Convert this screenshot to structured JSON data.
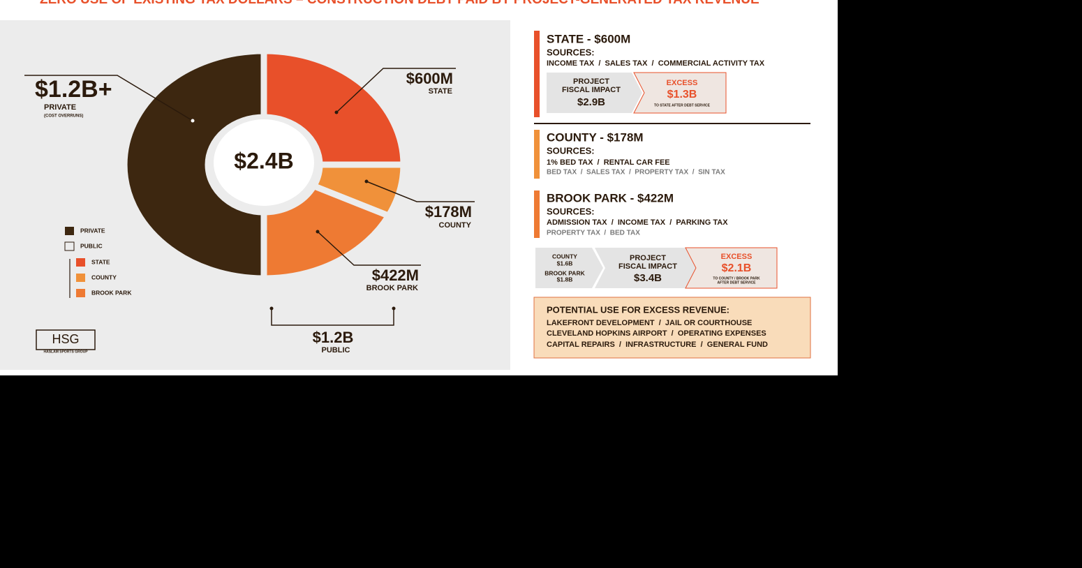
{
  "title": "ZERO USE OF EXISTING TAX DOLLARS – CONSTRUCTION DEBT PAID BY PROJECT-GENERATED TAX REVENUE",
  "chart_data": {
    "type": "pie",
    "categories": [
      "PRIVATE",
      "STATE",
      "COUNTY",
      "BROOK PARK"
    ],
    "values": [
      1200,
      600,
      178,
      422
    ],
    "value_labels": [
      "$1.2B+",
      "$600M",
      "$178M",
      "$422M"
    ],
    "colors": [
      "#3d2710",
      "#e8502a",
      "#f0913a",
      "#ee7a33"
    ],
    "center_label": "$2.4B",
    "annotation": "(COST OVERRUNS)",
    "public_label": "PUBLIC",
    "public_value_label": "$1.2B"
  },
  "logo": {
    "mark": "HSG",
    "name": "HASLAM SPORTS GROUP"
  },
  "panel": {
    "state": {
      "title": "STATE - $600M",
      "sources": "SOURCES:",
      "primary": "INCOME TAX  /  SALES TAX  /  COMMERCIAL ACTIVITY TAX",
      "impact": [
        "PROJECT",
        "FISCAL IMPACT",
        "$2.9B"
      ],
      "excess": [
        "EXCESS",
        "$1.3B",
        "TO STATE AFTER DEBT SERVICE"
      ]
    },
    "county": {
      "title": "COUNTY - $178M",
      "sources": "SOURCES:",
      "primary": "1% BED TAX  /  RENTAL CAR FEE",
      "secondary": "BED TAX  /  SALES TAX  /  PROPERTY TAX  /  SIN TAX"
    },
    "brook_park": {
      "title": "BROOK PARK - $422M",
      "sources": "SOURCES:",
      "primary": "ADMISSION TAX  /  INCOME TAX  /  PARKING TAX",
      "secondary": "PROPERTY TAX  /  BED TAX"
    },
    "combined": {
      "split": [
        "COUNTY",
        "$1.6B",
        "BROOK PARK",
        "$1.8B"
      ],
      "impact": [
        "PROJECT",
        "FISCAL IMPACT",
        "$3.4B"
      ],
      "excess": [
        "EXCESS",
        "$2.1B",
        "TO COUNTY / BROOK PARK",
        "AFTER DEBT SERVICE"
      ]
    },
    "potential": {
      "heading": "POTENTIAL USE FOR EXCESS REVENUE:",
      "lines": [
        "LAKEFRONT DEVELOPMENT  /  JAIL OR COURTHOUSE",
        "CLEVELAND HOPKINS AIRPORT  /  OPERATING EXPENSES",
        "CAPITAL REPAIRS  /  INFRASTRUCTURE  /  GENERAL FUND"
      ]
    }
  }
}
